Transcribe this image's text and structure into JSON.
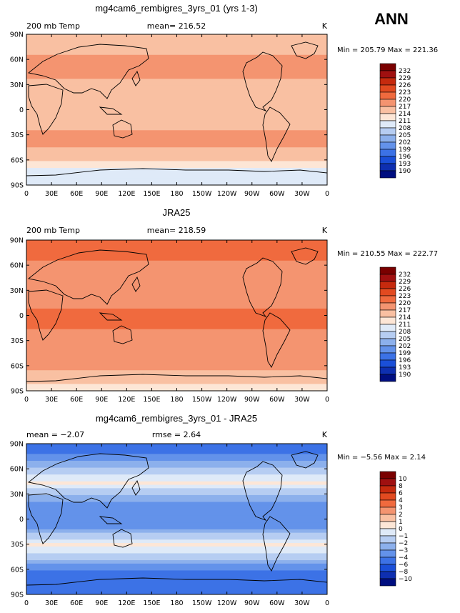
{
  "season": "ANN",
  "chart_data": [
    {
      "type": "heatmap",
      "title": "mg4cam6_rembigres_3yrs_01 (yrs 1-3)",
      "left_label": "200 mb Temp",
      "center_label": "mean= 216.52",
      "units": "K",
      "stats": "Min = 205.79 Max = 221.36",
      "xticks": [
        "0",
        "30E",
        "60E",
        "90E",
        "120E",
        "150E",
        "180",
        "150W",
        "120W",
        "90W",
        "60W",
        "30W",
        "0"
      ],
      "yticks": [
        "90N",
        "60N",
        "30N",
        "0",
        "30S",
        "60S",
        "90S"
      ],
      "levels": [
        "232",
        "229",
        "226",
        "223",
        "220",
        "217",
        "214",
        "211",
        "208",
        "205",
        "202",
        "199",
        "196",
        "193",
        "190"
      ],
      "lat_profile": [
        [
          90,
          215
        ],
        [
          80,
          215
        ],
        [
          70,
          216.5
        ],
        [
          55,
          217.8
        ],
        [
          45,
          217.2
        ],
        [
          30,
          216.8
        ],
        [
          15,
          216.3
        ],
        [
          0,
          216.2
        ],
        [
          -15,
          216.5
        ],
        [
          -25,
          217.1
        ],
        [
          -40,
          217.4
        ],
        [
          -55,
          216.3
        ],
        [
          -62,
          214.5
        ],
        [
          -70,
          210.5
        ],
        [
          -80,
          208.8
        ],
        [
          -90,
          208.5
        ]
      ]
    },
    {
      "type": "heatmap",
      "title": "JRA25",
      "left_label": "200 mb Temp",
      "center_label": "mean= 218.59",
      "units": "K",
      "stats": "Min = 210.55 Max = 222.77",
      "xticks": [
        "0",
        "30E",
        "60E",
        "90E",
        "120E",
        "150E",
        "180",
        "150W",
        "120W",
        "90W",
        "60W",
        "30W",
        "0"
      ],
      "yticks": [
        "90N",
        "60N",
        "30N",
        "0",
        "30S",
        "60S",
        "90S"
      ],
      "levels": [
        "232",
        "229",
        "226",
        "223",
        "220",
        "217",
        "214",
        "211",
        "208",
        "205",
        "202",
        "199",
        "196",
        "193",
        "190"
      ],
      "lat_profile": [
        [
          90,
          220.8
        ],
        [
          75,
          220.8
        ],
        [
          60,
          219.5
        ],
        [
          45,
          218.5
        ],
        [
          30,
          218.8
        ],
        [
          15,
          219.8
        ],
        [
          0,
          220.3
        ],
        [
          -15,
          220.2
        ],
        [
          -30,
          218.8
        ],
        [
          -45,
          218.5
        ],
        [
          -55,
          218.8
        ],
        [
          -65,
          217.5
        ],
        [
          -75,
          214.5
        ],
        [
          -90,
          213
        ]
      ]
    },
    {
      "type": "heatmap",
      "title": "mg4cam6_rembigres_3yrs_01 - JRA25",
      "left_label": "mean = −2.07",
      "center_label": "rmse = 2.64",
      "units": "K",
      "stats": "Min = −5.56 Max = 2.14",
      "xticks": [
        "0",
        "30E",
        "60E",
        "90E",
        "120E",
        "150E",
        "180",
        "150W",
        "120W",
        "90W",
        "60W",
        "30W",
        "0"
      ],
      "yticks": [
        "90N",
        "60N",
        "30N",
        "0",
        "30S",
        "60S",
        "90S"
      ],
      "levels": [
        "10",
        "8",
        "6",
        "4",
        "3",
        "2",
        "1",
        "0",
        "−1",
        "−2",
        "−3",
        "−4",
        "−6",
        "−8",
        "−10"
      ],
      "lat_profile": [
        [
          90,
          -5.2
        ],
        [
          80,
          -4.5
        ],
        [
          70,
          -2.8
        ],
        [
          55,
          -1.6
        ],
        [
          45,
          0.4
        ],
        [
          35,
          -1.5
        ],
        [
          20,
          -3
        ],
        [
          5,
          -3.8
        ],
        [
          -10,
          -3.5
        ],
        [
          -20,
          -1.5
        ],
        [
          -32,
          0.3
        ],
        [
          -45,
          -1.5
        ],
        [
          -60,
          -3.8
        ],
        [
          -75,
          -5
        ],
        [
          -90,
          -5.2
        ]
      ]
    }
  ]
}
